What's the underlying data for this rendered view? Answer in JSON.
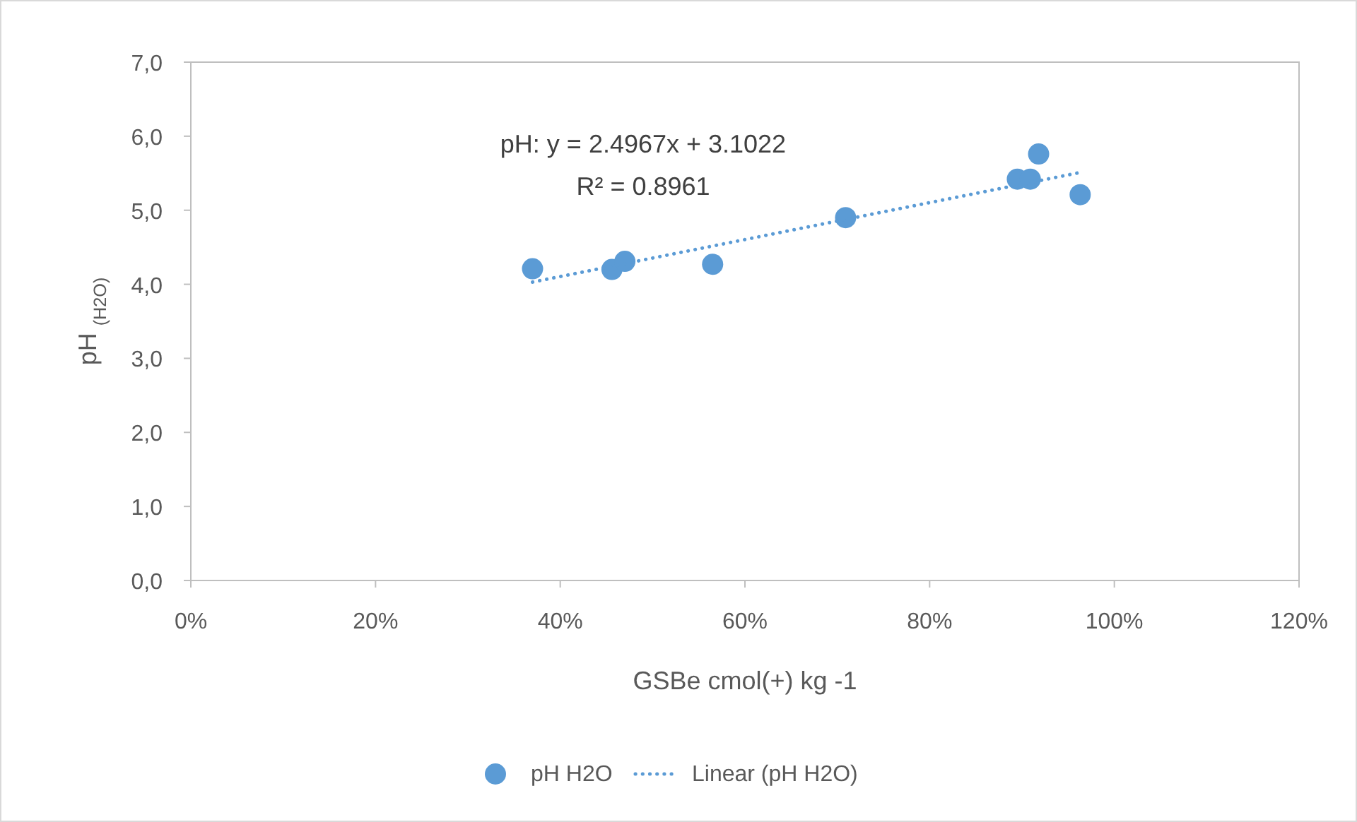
{
  "chart_data": {
    "type": "scatter",
    "xlabel": "GSBe  cmol(+) kg -1",
    "ylabel": "pH $_{(H2O)}$",
    "xlim": [
      0,
      1.2
    ],
    "xticks": [
      {
        "value": 0,
        "label": "0%"
      },
      {
        "value": 0.2,
        "label": "20%"
      },
      {
        "value": 0.4,
        "label": "40%"
      },
      {
        "value": 0.6,
        "label": "60%"
      },
      {
        "value": 0.8,
        "label": "80%"
      },
      {
        "value": 1.0,
        "label": "100%"
      },
      {
        "value": 1.2,
        "label": "120%"
      }
    ],
    "ylim": [
      0,
      7
    ],
    "yticks": [
      {
        "value": 0,
        "label": "0,0"
      },
      {
        "value": 1,
        "label": "1,0"
      },
      {
        "value": 2,
        "label": "2,0"
      },
      {
        "value": 3,
        "label": "3,0"
      },
      {
        "value": 4,
        "label": "4,0"
      },
      {
        "value": 5,
        "label": "5,0"
      },
      {
        "value": 6,
        "label": "6,0"
      },
      {
        "value": 7,
        "label": "7,0"
      }
    ],
    "grid": false,
    "legend": "bottom",
    "marker": "circle",
    "annotations": [
      "pH: y = 2.4967x + 3.1022",
      "R² = 0.8961"
    ],
    "series": [
      {
        "name": "pH H2O",
        "color": "#5b9bd5",
        "x": [
          0.37,
          0.456,
          0.47,
          0.565,
          0.709,
          0.895,
          0.909,
          0.918,
          0.963
        ],
        "values": [
          4.21,
          4.2,
          4.31,
          4.27,
          4.9,
          5.42,
          5.42,
          5.76,
          5.21
        ]
      },
      {
        "name": "Linear (pH H2O)",
        "type": "line",
        "line_style": "dotted",
        "marker": "none",
        "color": "#5b9bd5",
        "x": [
          0.37,
          0.963
        ],
        "values": [
          4.03,
          5.51
        ]
      }
    ]
  }
}
